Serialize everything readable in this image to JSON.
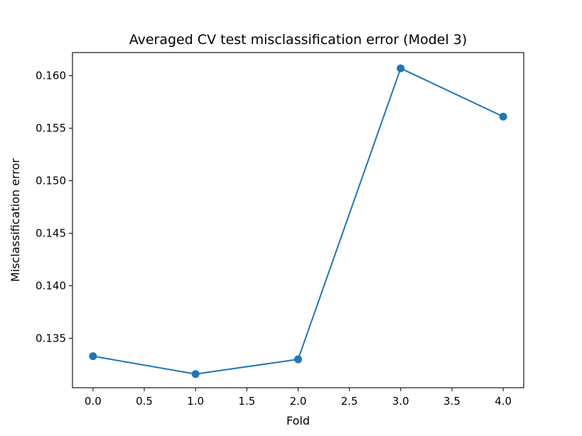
{
  "chart_data": {
    "type": "line",
    "title": "Averaged CV test misclassification error (Model 3)",
    "xlabel": "Fold",
    "ylabel": "Misclassification error",
    "x": [
      0,
      1,
      2,
      3,
      4
    ],
    "series": [
      {
        "values": [
          0.1333,
          0.1316,
          0.133,
          0.1607,
          0.1561
        ],
        "color": "#1f77b4",
        "marker": "circle"
      }
    ],
    "xlim": [
      -0.2,
      4.2
    ],
    "ylim": [
      0.1303,
      0.1622
    ],
    "xticks": [
      0.0,
      0.5,
      1.0,
      1.5,
      2.0,
      2.5,
      3.0,
      3.5,
      4.0
    ],
    "xtick_labels": [
      "0.0",
      "0.5",
      "1.0",
      "1.5",
      "2.0",
      "2.5",
      "3.0",
      "3.5",
      "4.0"
    ],
    "yticks": [
      0.135,
      0.14,
      0.145,
      0.15,
      0.155,
      0.16
    ],
    "ytick_labels": [
      "0.135",
      "0.140",
      "0.145",
      "0.150",
      "0.155",
      "0.160"
    ],
    "grid": false,
    "legend": "none"
  }
}
